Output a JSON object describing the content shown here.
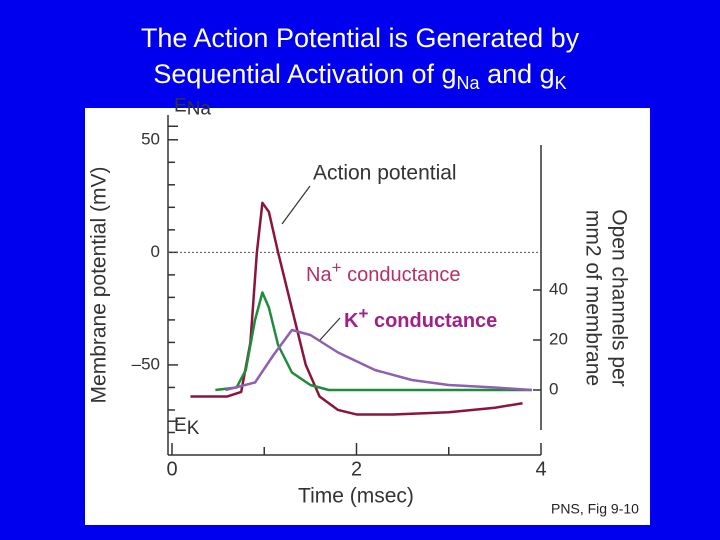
{
  "title": {
    "line1": "The Action Potential is Generated by",
    "line2": [
      "Sequential Activation of g",
      "Na",
      " and g",
      "K"
    ]
  },
  "caption": "PNS, Fig 9-10",
  "chart_data": {
    "type": "line",
    "x_label": "Time  (msec)",
    "y_label": "Membrane  potential  (mV)",
    "y2_label": [
      "Open  channels  per",
      "mm2  of  membrane"
    ],
    "xlim": [
      0,
      4
    ],
    "xticks": [
      0,
      2,
      4
    ],
    "xticks_minor": [
      1,
      3
    ],
    "ylim": [
      -90,
      61
    ],
    "yticks": [
      50,
      0,
      {
        "value": -50,
        "label": "–50"
      }
    ],
    "yticks_minor": [
      -80,
      -70,
      -60,
      -40,
      -30,
      -20,
      -10,
      10,
      20,
      30,
      40
    ],
    "y2lim": [
      -26,
      110
    ],
    "y2ticks": [
      0,
      20,
      40
    ],
    "reference_line": 0,
    "markers": [
      {
        "label": [
          "E",
          "Na"
        ],
        "value": 56
      },
      {
        "label": [
          "E",
          "K"
        ],
        "value": -75
      }
    ],
    "series": [
      {
        "name": "Action  potential",
        "color": "#8b1538",
        "label_color": "#333333",
        "x": [
          0.2,
          0.6,
          0.75,
          0.85,
          0.92,
          0.98,
          1.05,
          1.15,
          1.3,
          1.45,
          1.6,
          1.8,
          2.0,
          2.4,
          3.0,
          3.5,
          3.8
        ],
        "values": [
          -64,
          -64,
          -62,
          -40,
          0,
          22,
          18,
          0,
          -25,
          -50,
          -64,
          -70,
          -72,
          -72,
          -71,
          -69,
          -67
        ]
      },
      {
        "name": "Na+  conductance",
        "color": "#1e8c3c",
        "label_color": "#b5306a",
        "axis": "y2",
        "x": [
          0.47,
          0.7,
          0.8,
          0.9,
          0.98,
          1.05,
          1.15,
          1.3,
          1.5,
          1.7,
          3.9
        ],
        "values": [
          0,
          1,
          8,
          28,
          39,
          33,
          18,
          7,
          2,
          0,
          0
        ]
      },
      {
        "name": "K+  conductance",
        "color": "#9060b0",
        "label_color": "#a0208a",
        "axis": "y2",
        "x": [
          0.58,
          0.9,
          1.1,
          1.3,
          1.5,
          1.8,
          2.2,
          2.6,
          3.0,
          3.5,
          3.9
        ],
        "values": [
          0,
          3,
          14,
          24,
          22,
          15,
          8,
          4,
          2,
          1,
          0
        ]
      }
    ]
  }
}
